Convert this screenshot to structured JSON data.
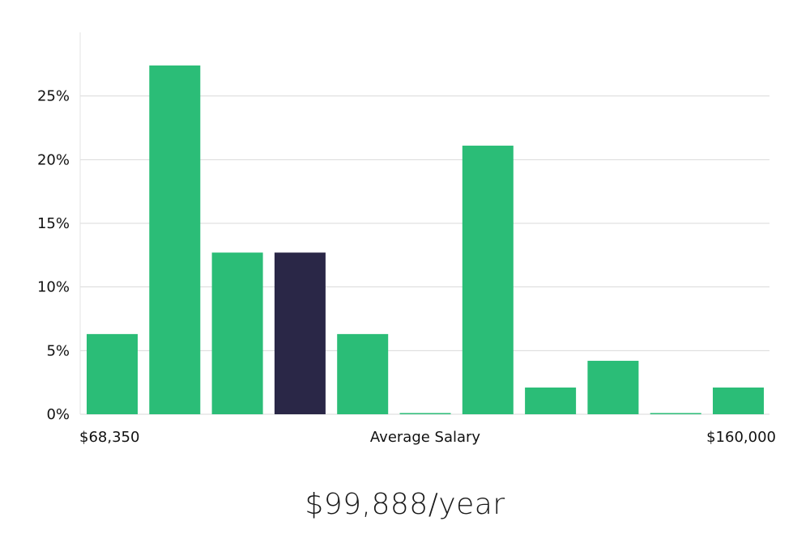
{
  "chart_data": {
    "type": "bar",
    "categories": [
      "",
      "",
      "",
      "",
      "",
      "",
      "",
      "",
      "",
      "",
      ""
    ],
    "values": [
      6.3,
      27.4,
      12.7,
      12.7,
      6.3,
      0.05,
      21.1,
      2.1,
      4.2,
      0.05,
      2.1
    ],
    "highlight_index": 3,
    "ylim": [
      0,
      30
    ],
    "yticks": [
      0,
      5,
      10,
      15,
      20,
      25
    ],
    "ytick_format_suffix": "%",
    "grid": true,
    "xlabel": "Average Salary",
    "x_min_label": "$68,350",
    "x_max_label": "$160,000",
    "colors": {
      "bar": "#2bbd77",
      "highlight": "#2a2747"
    }
  },
  "summary": {
    "salary": "$99,888/year"
  }
}
